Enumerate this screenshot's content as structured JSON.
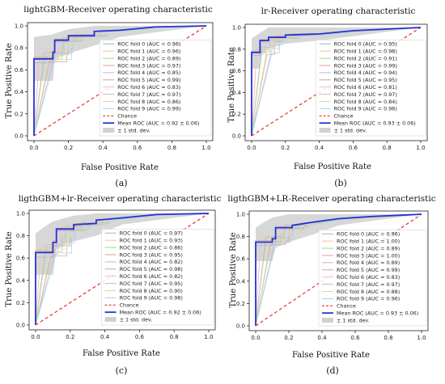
{
  "chart_data": [
    {
      "type": "line",
      "title": "lightGBM-Receiver operating characteristic",
      "xlabel": "False Positive Rate",
      "ylabel": "True Positive Rate",
      "caption": "(a)",
      "xlim": [
        0,
        1
      ],
      "ylim": [
        0,
        1
      ],
      "xticks": [
        "0.0",
        "0.2",
        "0.4",
        "0.6",
        "0.8",
        "1.0"
      ],
      "yticks": [
        "0.0",
        "0.2",
        "0.4",
        "0.6",
        "0.8",
        "1.0"
      ],
      "legend_position": "lower-right",
      "folds": [
        "ROC fold 0 (AUC = 0.96)",
        "ROC fold 1 (AUC = 0.96)",
        "ROC fold 2 (AUC = 0.89)",
        "ROC fold 3 (AUC = 0.97)",
        "ROC fold 4 (AUC = 0.85)",
        "ROC fold 5 (AUC = 0.99)",
        "ROC fold 6 (AUC = 0.83)",
        "ROC fold 7 (AUC = 0.97)",
        "ROC fold 8 (AUC = 0.86)",
        "ROC fold 9 (AUC = 0.99)"
      ],
      "chance_label": "Chance",
      "mean_label": "Mean ROC (AUC = 0.92 ± 0.06)",
      "std_label": "± 1 std. dev.",
      "mean_roc": [
        [
          0,
          0
        ],
        [
          0,
          0.7
        ],
        [
          0.11,
          0.7
        ],
        [
          0.11,
          0.76
        ],
        [
          0.12,
          0.76
        ],
        [
          0.12,
          0.87
        ],
        [
          0.2,
          0.87
        ],
        [
          0.2,
          0.91
        ],
        [
          0.35,
          0.91
        ],
        [
          0.35,
          0.95
        ],
        [
          0.5,
          0.96
        ],
        [
          0.7,
          0.99
        ],
        [
          1,
          1
        ]
      ],
      "std_upper": [
        [
          0,
          0.9
        ],
        [
          0.1,
          0.92
        ],
        [
          0.2,
          0.97
        ],
        [
          0.35,
          1
        ],
        [
          1,
          1
        ]
      ],
      "std_lower": [
        [
          0,
          0.5
        ],
        [
          0.11,
          0.5
        ],
        [
          0.12,
          0.7
        ],
        [
          0.2,
          0.75
        ],
        [
          0.35,
          0.82
        ],
        [
          0.5,
          0.9
        ],
        [
          1,
          1
        ]
      ]
    },
    {
      "type": "line",
      "title": "lr-Receiver operating characteristic",
      "xlabel": "False Positive Rate",
      "ylabel": "True Positive Rate",
      "caption": "(b)",
      "xlim": [
        0,
        1
      ],
      "ylim": [
        0,
        1
      ],
      "xticks": [
        "0.0",
        "0.2",
        "0.4",
        "0.6",
        "0.8",
        "1.0"
      ],
      "yticks": [
        "0.0",
        "0.2",
        "0.4",
        "0.6",
        "0.8",
        "1.0"
      ],
      "legend_position": "lower-right",
      "folds": [
        "ROC fold 0 (AUC = 0.95)",
        "ROC fold 1 (AUC = 0.98)",
        "ROC fold 2 (AUC = 0.91)",
        "ROC fold 3 (AUC = 0.99)",
        "ROC fold 4 (AUC = 0.94)",
        "ROC fold 5 (AUC = 0.95)",
        "ROC fold 6 (AUC = 0.81)",
        "ROC fold 7 (AUC = 0.97)",
        "ROC fold 8 (AUC = 0.84)",
        "ROC fold 9 (AUC = 0.98)"
      ],
      "chance_label": "Chance",
      "mean_label": "Mean ROC (AUC = 0.93 ± 0.06)",
      "std_label": "± 1 std. dev.",
      "mean_roc": [
        [
          0,
          0
        ],
        [
          0,
          0.77
        ],
        [
          0.05,
          0.77
        ],
        [
          0.05,
          0.88
        ],
        [
          0.1,
          0.88
        ],
        [
          0.1,
          0.91
        ],
        [
          0.2,
          0.91
        ],
        [
          0.2,
          0.93
        ],
        [
          0.4,
          0.94
        ],
        [
          0.6,
          0.97
        ],
        [
          1,
          1
        ]
      ],
      "std_upper": [
        [
          0,
          0.9
        ],
        [
          0.05,
          0.95
        ],
        [
          0.1,
          1
        ],
        [
          1,
          1
        ]
      ],
      "std_lower": [
        [
          0,
          0.62
        ],
        [
          0.05,
          0.62
        ],
        [
          0.06,
          0.75
        ],
        [
          0.1,
          0.8
        ],
        [
          0.2,
          0.85
        ],
        [
          0.4,
          0.88
        ],
        [
          1,
          1
        ]
      ]
    },
    {
      "type": "line",
      "title": "ligthGBM+lr-Receiver operating characteristic",
      "xlabel": "False Positive Rate",
      "ylabel": "True Positive Rate",
      "caption": "(c)",
      "xlim": [
        0,
        1
      ],
      "ylim": [
        0,
        1
      ],
      "xticks": [
        "0.0",
        "0.2",
        "0.4",
        "0.6",
        "0.8",
        "1.0"
      ],
      "yticks": [
        "0.0",
        "0.2",
        "0.4",
        "0.6",
        "0.8",
        "1.0"
      ],
      "legend_position": "lower-right",
      "folds": [
        "ROC fold 0 (AUC = 0.97)",
        "ROC fold 1 (AUC = 0.93)",
        "ROC fold 2 (AUC = 0.86)",
        "ROC fold 3 (AUC = 0.95)",
        "ROC fold 4 (AUC = 0.82)",
        "ROC fold 5 (AUC = 0.98)",
        "ROC fold 6 (AUC = 0.82)",
        "ROC fold 7 (AUC = 0.95)",
        "ROC fold 8 (AUC = 0.90)",
        "ROC fold 9 (AUC = 0.98)"
      ],
      "chance_label": "Chance",
      "mean_label": "Mean ROC (AUC = 0.92 ± 0.06)",
      "std_label": "± 1 std. dev.",
      "mean_roc": [
        [
          0,
          0
        ],
        [
          0,
          0.65
        ],
        [
          0.1,
          0.65
        ],
        [
          0.1,
          0.74
        ],
        [
          0.12,
          0.74
        ],
        [
          0.12,
          0.86
        ],
        [
          0.22,
          0.86
        ],
        [
          0.22,
          0.9
        ],
        [
          0.35,
          0.91
        ],
        [
          0.35,
          0.94
        ],
        [
          0.5,
          0.96
        ],
        [
          0.7,
          0.99
        ],
        [
          1,
          1
        ]
      ],
      "std_upper": [
        [
          0,
          0.82
        ],
        [
          0.05,
          0.88
        ],
        [
          0.1,
          0.93
        ],
        [
          0.22,
          0.98
        ],
        [
          0.35,
          1
        ],
        [
          1,
          1
        ]
      ],
      "std_lower": [
        [
          0,
          0.45
        ],
        [
          0.1,
          0.45
        ],
        [
          0.12,
          0.68
        ],
        [
          0.22,
          0.75
        ],
        [
          0.35,
          0.8
        ],
        [
          0.5,
          0.9
        ],
        [
          1,
          1
        ]
      ]
    },
    {
      "type": "line",
      "title": "ligthGBM+LR-Receiver operating characteristic",
      "xlabel": "False Positive Rate",
      "ylabel": "True Positive Rate",
      "caption": "(d)",
      "xlim": [
        0,
        1
      ],
      "ylim": [
        0,
        1
      ],
      "xticks": [
        "0.0",
        "0.2",
        "0.4",
        "0.6",
        "0.8",
        "1.0"
      ],
      "yticks": [
        "0.0",
        "0.2",
        "0.4",
        "0.6",
        "0.8",
        "1.0"
      ],
      "legend_position": "lower-right",
      "folds": [
        "ROC fold 0 (AUC = 0.96)",
        "ROC fold 1 (AUC = 1.00)",
        "ROC fold 2 (AUC = 0.89)",
        "ROC fold 3 (AUC = 1.00)",
        "ROC fold 4 (AUC = 0.89)",
        "ROC fold 5 (AUC = 0.99)",
        "ROC fold 6 (AUC = 0.83)",
        "ROC fold 7 (AUC = 0.97)",
        "ROC fold 8 (AUC = 0.88)",
        "ROC fold 9 (AUC = 0.96)"
      ],
      "chance_label": "Chance",
      "mean_label": "Mean ROC (AUC = 0.93 ± 0.06)",
      "std_label": "± 1 std. dev.",
      "mean_roc": [
        [
          0,
          0
        ],
        [
          0,
          0.75
        ],
        [
          0.1,
          0.75
        ],
        [
          0.1,
          0.78
        ],
        [
          0.12,
          0.78
        ],
        [
          0.12,
          0.88
        ],
        [
          0.22,
          0.88
        ],
        [
          0.22,
          0.9
        ],
        [
          0.35,
          0.93
        ],
        [
          0.5,
          0.96
        ],
        [
          0.7,
          0.98
        ],
        [
          1,
          1
        ]
      ],
      "std_upper": [
        [
          0,
          0.88
        ],
        [
          0.05,
          0.93
        ],
        [
          0.1,
          0.97
        ],
        [
          0.2,
          1
        ],
        [
          1,
          1
        ]
      ],
      "std_lower": [
        [
          0,
          0.58
        ],
        [
          0.1,
          0.58
        ],
        [
          0.12,
          0.7
        ],
        [
          0.22,
          0.76
        ],
        [
          0.35,
          0.82
        ],
        [
          0.5,
          0.9
        ],
        [
          1,
          1
        ]
      ]
    }
  ],
  "colors": {
    "mean": "#2432d6",
    "chance": "#e8322b",
    "band": "#d0d0d0",
    "folds": [
      "#9ab2d6",
      "#f4c48c",
      "#9fd58f",
      "#e39a9a",
      "#c4b2dc",
      "#c8a89c",
      "#f0b8de",
      "#bdbdbd",
      "#dcdc90",
      "#93dde6"
    ]
  }
}
